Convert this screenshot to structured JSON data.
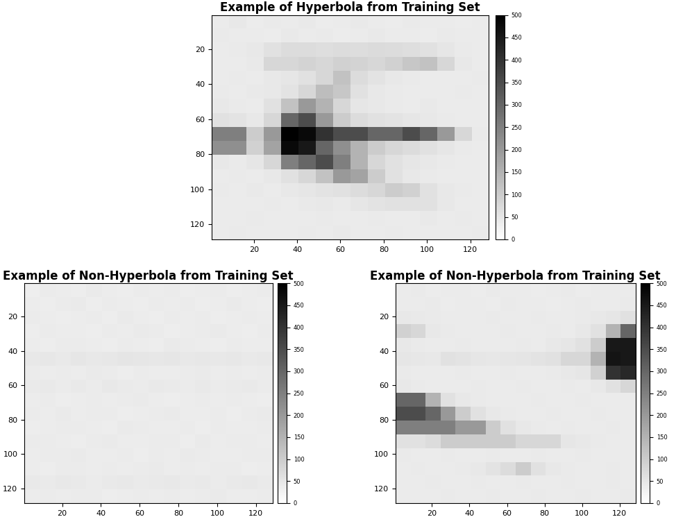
{
  "chart_data": [
    {
      "type": "heatmap",
      "title": "Example of Hyperbola from Training Set",
      "xlim": [
        0.5,
        128.5
      ],
      "ylim": [
        128.5,
        0.5
      ],
      "xticks": [
        20,
        40,
        60,
        80,
        100,
        120
      ],
      "yticks": [
        20,
        40,
        60,
        80,
        100,
        120
      ],
      "colorbar_range": [
        0,
        500
      ],
      "colorbar_ticks": [
        0,
        50,
        100,
        150,
        200,
        250,
        300,
        350,
        400,
        450,
        500
      ],
      "cells": [
        [
          40,
          45,
          38,
          42,
          40,
          44,
          39,
          41,
          43,
          40,
          38,
          42,
          40,
          41,
          39,
          40
        ],
        [
          42,
          40,
          41,
          39,
          44,
          40,
          42,
          38,
          40,
          43,
          41,
          40,
          39,
          42,
          40,
          41
        ],
        [
          40,
          42,
          45,
          60,
          70,
          70,
          65,
          70,
          68,
          72,
          70,
          66,
          60,
          50,
          42,
          40
        ],
        [
          41,
          40,
          44,
          80,
          80,
          85,
          80,
          90,
          85,
          80,
          90,
          110,
          120,
          80,
          45,
          40
        ],
        [
          40,
          42,
          41,
          45,
          50,
          60,
          80,
          120,
          70,
          55,
          45,
          42,
          40,
          41,
          40,
          42
        ],
        [
          42,
          40,
          43,
          45,
          55,
          80,
          130,
          110,
          60,
          45,
          42,
          40,
          41,
          40,
          42,
          40
        ],
        [
          45,
          42,
          40,
          60,
          120,
          200,
          150,
          80,
          50,
          45,
          42,
          40,
          43,
          40,
          41,
          40
        ],
        [
          60,
          55,
          45,
          80,
          300,
          350,
          200,
          100,
          70,
          60,
          55,
          50,
          45,
          42,
          40,
          41
        ],
        [
          250,
          250,
          100,
          200,
          500,
          480,
          400,
          350,
          350,
          300,
          300,
          350,
          300,
          200,
          80,
          42
        ],
        [
          220,
          220,
          90,
          180,
          480,
          450,
          300,
          220,
          150,
          100,
          80,
          70,
          60,
          50,
          42,
          40
        ],
        [
          45,
          42,
          50,
          80,
          250,
          300,
          350,
          250,
          150,
          80,
          60,
          50,
          45,
          42,
          40,
          41
        ],
        [
          40,
          42,
          41,
          45,
          60,
          80,
          120,
          200,
          180,
          100,
          60,
          45,
          42,
          40,
          41,
          40
        ],
        [
          42,
          40,
          43,
          41,
          45,
          50,
          55,
          60,
          70,
          80,
          100,
          90,
          60,
          45,
          42,
          40
        ],
        [
          40,
          41,
          40,
          42,
          40,
          43,
          45,
          42,
          50,
          55,
          60,
          60,
          60,
          45,
          41,
          40
        ],
        [
          41,
          40,
          42,
          40,
          41,
          40,
          42,
          41,
          40,
          42,
          40,
          41,
          43,
          40,
          42,
          40
        ],
        [
          40,
          42,
          40,
          41,
          40,
          42,
          40,
          43,
          41,
          40,
          42,
          40,
          41,
          40,
          40,
          42
        ]
      ]
    },
    {
      "type": "heatmap",
      "title": "Example of Non-Hyperbola from Training Set",
      "xlim": [
        0.5,
        128.5
      ],
      "ylim": [
        128.5,
        0.5
      ],
      "xticks": [
        20,
        40,
        60,
        80,
        100,
        120
      ],
      "yticks": [
        20,
        40,
        60,
        80,
        100,
        120
      ],
      "colorbar_range": [
        0,
        500
      ],
      "colorbar_ticks": [
        0,
        50,
        100,
        150,
        200,
        250,
        300,
        350,
        400,
        450,
        500
      ],
      "cells": [
        [
          35,
          40,
          38,
          36,
          42,
          39,
          37,
          40,
          38,
          41,
          36,
          39,
          40,
          37,
          38,
          40
        ],
        [
          38,
          36,
          40,
          42,
          37,
          40,
          39,
          36,
          41,
          38,
          40,
          37,
          39,
          42,
          38,
          36
        ],
        [
          40,
          38,
          37,
          39,
          40,
          36,
          42,
          38,
          37,
          40,
          39,
          41,
          37,
          38,
          40,
          39
        ],
        [
          37,
          41,
          39,
          38,
          36,
          40,
          38,
          42,
          40,
          37,
          38,
          40,
          42,
          39,
          37,
          41
        ],
        [
          39,
          37,
          40,
          41,
          38,
          37,
          40,
          39,
          36,
          42,
          41,
          38,
          37,
          40,
          39,
          38
        ],
        [
          45,
          48,
          44,
          50,
          46,
          48,
          52,
          50,
          47,
          49,
          46,
          48,
          45,
          47,
          44,
          46
        ],
        [
          40,
          38,
          41,
          39,
          42,
          40,
          37,
          41,
          39,
          38,
          40,
          42,
          39,
          41,
          38,
          40
        ],
        [
          42,
          44,
          40,
          43,
          41,
          45,
          42,
          40,
          44,
          42,
          41,
          43,
          40,
          42,
          44,
          41
        ],
        [
          38,
          40,
          37,
          39,
          41,
          38,
          40,
          42,
          38,
          37,
          39,
          40,
          38,
          41,
          39,
          37
        ],
        [
          40,
          39,
          42,
          38,
          40,
          41,
          37,
          39,
          40,
          42,
          38,
          39,
          41,
          37,
          40,
          42
        ],
        [
          37,
          38,
          40,
          41,
          39,
          37,
          42,
          40,
          38,
          39,
          41,
          37,
          40,
          39,
          38,
          40
        ],
        [
          41,
          40,
          38,
          37,
          40,
          42,
          39,
          38,
          41,
          40,
          37,
          42,
          38,
          40,
          41,
          39
        ],
        [
          39,
          41,
          40,
          42,
          38,
          39,
          41,
          37,
          40,
          38,
          42,
          40,
          39,
          38,
          40,
          41
        ],
        [
          38,
          37,
          41,
          40,
          39,
          40,
          38,
          41,
          42,
          39,
          40,
          38,
          41,
          40,
          37,
          39
        ],
        [
          44,
          42,
          45,
          43,
          41,
          44,
          46,
          42,
          43,
          45,
          42,
          44,
          41,
          43,
          45,
          42
        ],
        [
          39,
          40,
          38,
          41,
          40,
          37,
          39,
          40,
          38,
          41,
          39,
          40,
          42,
          38,
          39,
          40
        ]
      ]
    },
    {
      "type": "heatmap",
      "title": "Example of Non-Hyperbola from Training Set",
      "xlim": [
        0.5,
        128.5
      ],
      "ylim": [
        128.5,
        0.5
      ],
      "xticks": [
        20,
        40,
        60,
        80,
        100,
        120
      ],
      "yticks": [
        20,
        40,
        60,
        80,
        100,
        120
      ],
      "colorbar_range": [
        0,
        500
      ],
      "colorbar_ticks": [
        0,
        50,
        100,
        150,
        200,
        250,
        300,
        350,
        400,
        450,
        500
      ],
      "cells": [
        [
          40,
          42,
          38,
          41,
          40,
          39,
          42,
          40,
          41,
          38,
          40,
          42,
          39,
          40,
          41,
          40
        ],
        [
          41,
          40,
          42,
          39,
          40,
          41,
          38,
          42,
          40,
          41,
          39,
          40,
          42,
          41,
          40,
          42
        ],
        [
          45,
          44,
          42,
          40,
          41,
          40,
          42,
          41,
          40,
          42,
          41,
          40,
          42,
          45,
          50,
          60
        ],
        [
          90,
          80,
          45,
          42,
          40,
          41,
          40,
          42,
          41,
          40,
          42,
          41,
          45,
          60,
          150,
          300
        ],
        [
          45,
          42,
          41,
          40,
          42,
          40,
          41,
          40,
          42,
          41,
          45,
          50,
          60,
          100,
          450,
          450
        ],
        [
          50,
          48,
          45,
          60,
          55,
          50,
          48,
          50,
          52,
          55,
          60,
          80,
          80,
          150,
          460,
          450
        ],
        [
          42,
          40,
          41,
          40,
          42,
          41,
          40,
          42,
          41,
          40,
          42,
          45,
          50,
          90,
          400,
          420
        ],
        [
          45,
          42,
          40,
          41,
          40,
          42,
          41,
          40,
          42,
          41,
          40,
          42,
          41,
          45,
          60,
          80
        ],
        [
          300,
          300,
          150,
          60,
          45,
          42,
          40,
          41,
          40,
          42,
          41,
          40,
          42,
          40,
          41,
          40
        ],
        [
          350,
          350,
          300,
          200,
          100,
          60,
          45,
          42,
          41,
          40,
          42,
          41,
          40,
          42,
          40,
          41
        ],
        [
          250,
          250,
          250,
          250,
          200,
          200,
          100,
          60,
          45,
          42,
          40,
          42,
          41,
          40,
          42,
          40
        ],
        [
          60,
          60,
          70,
          100,
          100,
          100,
          100,
          100,
          80,
          80,
          80,
          50,
          45,
          42,
          40,
          41
        ],
        [
          42,
          40,
          41,
          42,
          40,
          41,
          42,
          40,
          41,
          42,
          40,
          41,
          42,
          40,
          41,
          40
        ],
        [
          40,
          42,
          41,
          40,
          42,
          45,
          55,
          70,
          100,
          60,
          45,
          42,
          40,
          41,
          42,
          40
        ],
        [
          41,
          40,
          42,
          41,
          40,
          42,
          41,
          40,
          42,
          41,
          40,
          42,
          41,
          40,
          42,
          41
        ],
        [
          40,
          41,
          40,
          42,
          41,
          40,
          42,
          41,
          40,
          42,
          41,
          40,
          42,
          41,
          40,
          42
        ]
      ]
    }
  ]
}
